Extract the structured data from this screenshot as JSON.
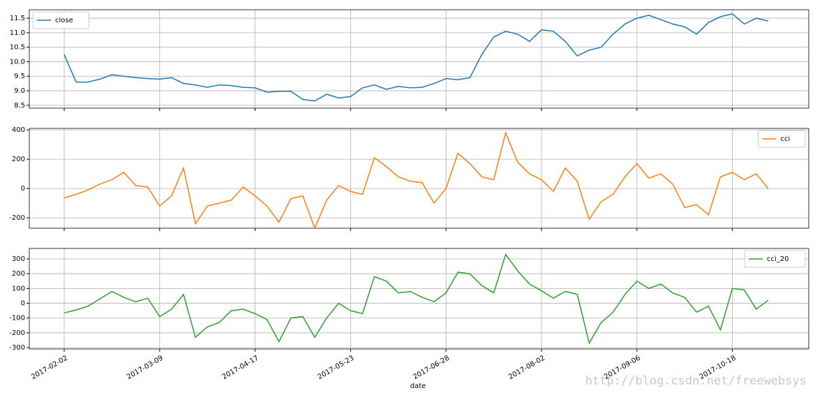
{
  "chart_data": {
    "type": "line",
    "xlabel": "date",
    "grid": true,
    "watermark": "http://blog.csdn.net/freewebsys",
    "categories": [
      "2017-02-02",
      null,
      null,
      null,
      null,
      null,
      null,
      null,
      "2017-03-09",
      null,
      null,
      null,
      null,
      null,
      null,
      null,
      "2017-04-17",
      null,
      null,
      null,
      null,
      null,
      null,
      null,
      "2017-05-23",
      null,
      null,
      null,
      null,
      null,
      null,
      null,
      "2017-06-28",
      null,
      null,
      null,
      null,
      null,
      null,
      null,
      "2017-08-02",
      null,
      null,
      null,
      null,
      null,
      null,
      null,
      "2017-09-06",
      null,
      null,
      null,
      null,
      null,
      null,
      null,
      "2017-10-18",
      null,
      null,
      null
    ],
    "panels": [
      {
        "legend": "upper left",
        "ylim": [
          8.4,
          11.79
        ],
        "yticks": [
          8.5,
          {
            "value": 9.0,
            "label": "9.0"
          },
          9.5,
          {
            "value": 10.0,
            "label": "10.0"
          },
          10.5,
          {
            "value": 11.0,
            "label": "11.0"
          },
          11.5
        ],
        "series": [
          {
            "name": "close",
            "color": "#1f77b4",
            "values": [
              10.25,
              9.3,
              9.3,
              9.4,
              9.55,
              9.5,
              9.45,
              9.42,
              9.4,
              9.45,
              9.25,
              9.2,
              9.12,
              9.2,
              9.18,
              9.12,
              9.1,
              8.95,
              8.98,
              8.98,
              8.7,
              8.65,
              8.88,
              8.75,
              8.8,
              9.1,
              9.2,
              9.05,
              9.15,
              9.1,
              9.12,
              9.25,
              9.42,
              9.38,
              9.45,
              10.25,
              10.85,
              11.05,
              10.95,
              10.7,
              11.1,
              11.05,
              10.7,
              10.2,
              10.4,
              10.5,
              10.95,
              11.3,
              11.5,
              11.6,
              11.45,
              11.3,
              11.2,
              10.95,
              11.35,
              11.55,
              11.65,
              11.3,
              11.5,
              11.4
            ]
          }
        ]
      },
      {
        "legend": "upper right",
        "ylim": [
          -271,
          410
        ],
        "yticks": [
          -200,
          0,
          200,
          400
        ],
        "series": [
          {
            "name": "cci",
            "color": "#ff7f0e",
            "values": [
              -65,
              -40,
              -10,
              30,
              60,
              110,
              20,
              10,
              -120,
              -50,
              140,
              -240,
              -120,
              -100,
              -80,
              10,
              -50,
              -120,
              -230,
              -70,
              -50,
              -270,
              -80,
              20,
              -20,
              -40,
              210,
              150,
              80,
              50,
              40,
              -100,
              0,
              240,
              170,
              80,
              60,
              380,
              180,
              100,
              60,
              -20,
              140,
              50,
              -210,
              -90,
              -40,
              80,
              170,
              70,
              100,
              30,
              -130,
              -110,
              -180,
              80,
              110,
              60,
              100,
              0
            ]
          }
        ]
      },
      {
        "legend": "upper right",
        "ylim": [
          -309,
          371
        ],
        "yticks": [
          -300,
          -200,
          -100,
          0,
          100,
          200,
          300
        ],
        "series": [
          {
            "name": "cci_20",
            "color": "#2ca02c",
            "values": [
              -65,
              -45,
              -20,
              30,
              80,
              40,
              10,
              35,
              -90,
              -40,
              60,
              -230,
              -160,
              -130,
              -50,
              -40,
              -70,
              -110,
              -260,
              -100,
              -90,
              -230,
              -100,
              0,
              -50,
              -70,
              180,
              150,
              70,
              80,
              40,
              10,
              70,
              210,
              200,
              120,
              70,
              330,
              220,
              130,
              85,
              35,
              80,
              60,
              -270,
              -130,
              -60,
              60,
              150,
              100,
              130,
              70,
              40,
              -60,
              -20,
              -180,
              100,
              90,
              -40,
              20
            ]
          }
        ]
      }
    ]
  }
}
